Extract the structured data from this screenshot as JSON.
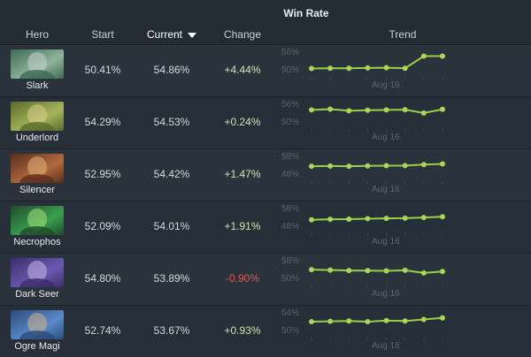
{
  "table": {
    "group_title": "Win Rate",
    "columns": {
      "hero": "Hero",
      "start": "Start",
      "current": "Current",
      "change": "Change",
      "trend": "Trend"
    },
    "date_label": "Aug 16",
    "rows": [
      {
        "hero": "Slark",
        "start": "50.41%",
        "current": "54.86%",
        "change": "+4.44%",
        "axis_hi": "56%",
        "axis_lo": "50%",
        "trend": [
          50.4,
          50.5,
          50.5,
          50.6,
          50.7,
          50.5,
          54.9,
          54.9
        ],
        "range": [
          48,
          57
        ],
        "portrait": [
          "#3d6a55",
          "#8fb49a",
          "#c9cfd1"
        ]
      },
      {
        "hero": "Underlord",
        "start": "54.29%",
        "current": "54.53%",
        "change": "+0.24%",
        "axis_hi": "56%",
        "axis_lo": "50%",
        "trend": [
          54.3,
          54.6,
          54.0,
          54.2,
          54.3,
          54.4,
          53.2,
          54.5
        ],
        "range": [
          48,
          57
        ],
        "portrait": [
          "#5a6a2a",
          "#a6b45c",
          "#d9cf8a"
        ]
      },
      {
        "hero": "Silencer",
        "start": "52.95%",
        "current": "54.42%",
        "change": "+1.47%",
        "axis_hi": "58%",
        "axis_lo": "48%",
        "trend": [
          53.0,
          53.1,
          53.0,
          53.2,
          53.3,
          53.4,
          54.0,
          54.4
        ],
        "range": [
          45,
          60
        ],
        "portrait": [
          "#5a2c1c",
          "#b06a3e",
          "#e4b27a"
        ]
      },
      {
        "hero": "Necrophos",
        "start": "52.09%",
        "current": "54.01%",
        "change": "+1.91%",
        "axis_hi": "58%",
        "axis_lo": "48%",
        "trend": [
          52.1,
          52.4,
          52.5,
          52.8,
          53.0,
          53.1,
          53.5,
          54.0
        ],
        "range": [
          45,
          60
        ],
        "portrait": [
          "#1f4a2a",
          "#3aa04e",
          "#a6e27a"
        ]
      },
      {
        "hero": "Dark Seer",
        "start": "54.80%",
        "current": "53.89%",
        "change": "-0.90%",
        "axis_hi": "58%",
        "axis_lo": "50%",
        "trend": [
          54.8,
          54.6,
          54.4,
          54.3,
          54.2,
          54.5,
          53.2,
          53.9
        ],
        "range": [
          48,
          60
        ],
        "portrait": [
          "#3a2c6a",
          "#6a5ab0",
          "#c8b8ea"
        ]
      },
      {
        "hero": "Ogre Magi",
        "start": "52.74%",
        "current": "53.67%",
        "change": "+0.93%",
        "axis_hi": "54%",
        "axis_lo": "50%",
        "trend": [
          52.7,
          52.8,
          52.9,
          52.7,
          53.0,
          52.9,
          53.3,
          53.7
        ],
        "range": [
          49,
          55.5
        ],
        "portrait": [
          "#2c4a7a",
          "#5a8ac8",
          "#d4b48a"
        ]
      }
    ]
  }
}
